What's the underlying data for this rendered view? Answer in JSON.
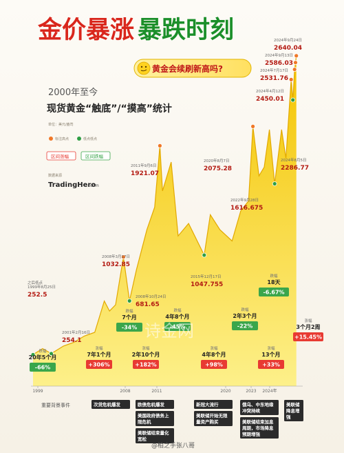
{
  "page_title_a": "金价暴涨",
  "page_title_b": "暴跌时刻",
  "question": "黄金会续刷新高吗?",
  "chart_title": "2000年至今",
  "chart_subtitle": "现货黄金“触底”/“摸高”统计",
  "unit_note": "单位：美元/盎司",
  "legend": {
    "marker_high": "标注高点",
    "marker_low": "低点低点",
    "badge_rise": "区间涨幅",
    "badge_fall": "区间跌幅"
  },
  "brand": {
    "tag": "数据来源",
    "name": "TradingHero",
    "suffix": ".com"
  },
  "watermark": "诗金网",
  "credit": "@柏之手张八哥",
  "colors": {
    "gold_dark": "#e8a800",
    "gold_light": "#fbe25a",
    "rise_red": "#e83a32",
    "fall_green": "#3aa64b",
    "title_red": "#d9261c",
    "title_green": "#1b8f2a",
    "dot_orange": "#f07828",
    "dot_green": "#2e9e44"
  },
  "chart_data": {
    "type": "area",
    "xlabel": "",
    "ylabel": "",
    "x_ticks": [
      "1999",
      "2008",
      "2011",
      "2020",
      "2023",
      "2024年"
    ],
    "x": [
      "1999-07",
      "2000-06",
      "2001-04",
      "2002-06",
      "2003-06",
      "2004-06",
      "2005-06",
      "2006-05",
      "2006-11",
      "2007-06",
      "2008-03",
      "2008-10",
      "2009-06",
      "2010-06",
      "2011-03",
      "2011-09",
      "2011-12",
      "2012-10",
      "2013-06",
      "2014-06",
      "2015-12",
      "2016-07",
      "2017-06",
      "2018-08",
      "2019-06",
      "2020-03",
      "2020-08",
      "2021-03",
      "2021-09",
      "2022-03",
      "2022-09",
      "2023-05",
      "2023-10",
      "2024-04",
      "2024-06",
      "2024-08",
      "2024-09",
      "2024-10"
    ],
    "y": [
      252,
      300,
      260,
      320,
      350,
      400,
      430,
      680,
      600,
      650,
      1032,
      681,
      930,
      1250,
      1430,
      1921,
      1560,
      1790,
      1200,
      1300,
      1047,
      1370,
      1250,
      1160,
      1400,
      1480,
      2075,
      1680,
      1750,
      2050,
      1617,
      2050,
      1820,
      2450,
      2287,
      2531,
      2586,
      2640
    ],
    "annotations": [
      {
        "date": "之后低点\n1999年8月25日",
        "value": "252.5"
      },
      {
        "date": "2001年2月16日",
        "value": "254.1"
      },
      {
        "date": "2008年3月17日",
        "value": "1032.85"
      },
      {
        "date": "2008年10月24日",
        "value": "681.65"
      },
      {
        "date": "2011年9月6日",
        "value": "1921.07"
      },
      {
        "date": "2015年12月17日",
        "value": "1047.755"
      },
      {
        "date": "2020年8月7日",
        "value": "2075.28"
      },
      {
        "date": "2022年9月28日",
        "value": "1616.675"
      },
      {
        "date": "2024年4月12日",
        "value": "2450.01"
      },
      {
        "date": "2024年8月5日",
        "value": "2286.77"
      },
      {
        "date": "2024年7月17日",
        "value": "2531.76"
      },
      {
        "date": "2024年9月13日",
        "value": "2586.03"
      },
      {
        "date": "2024年9月24日",
        "value": "2640.04"
      }
    ],
    "periods": [
      {
        "duration": "20年5个月",
        "change": "-66%",
        "direction": "fall"
      },
      {
        "duration": "7年1个月",
        "change": "+306%",
        "direction": "rise"
      },
      {
        "duration": "7个月",
        "change": "-34%",
        "direction": "fall"
      },
      {
        "duration": "2年10个月",
        "change": "+182%",
        "direction": "rise"
      },
      {
        "duration": "4年8个月",
        "change": "-45%",
        "direction": "fall"
      },
      {
        "duration": "4年8个月",
        "change": "+98%",
        "direction": "rise"
      },
      {
        "duration": "2年3个月",
        "change": "-22%",
        "direction": "fall"
      },
      {
        "duration": "13个月",
        "change": "+33%",
        "direction": "rise"
      },
      {
        "duration": "18天",
        "change": "-6.67%",
        "direction": "fall"
      },
      {
        "duration": "3个月2周",
        "change": "+15.45%",
        "direction": "rise"
      }
    ]
  },
  "events": {
    "label": "重要背景事件",
    "items": [
      "次贷危机爆发",
      "欧债危机爆发",
      "美国政府债务上限危机",
      "美联储结束量化宽松",
      "新冠大流行",
      "美联储开始无限量资产购买",
      "俄乌、中东地缘冲突持续",
      "美联储结束加息周期，市场降息预期增强",
      "美联储降息增强"
    ]
  }
}
